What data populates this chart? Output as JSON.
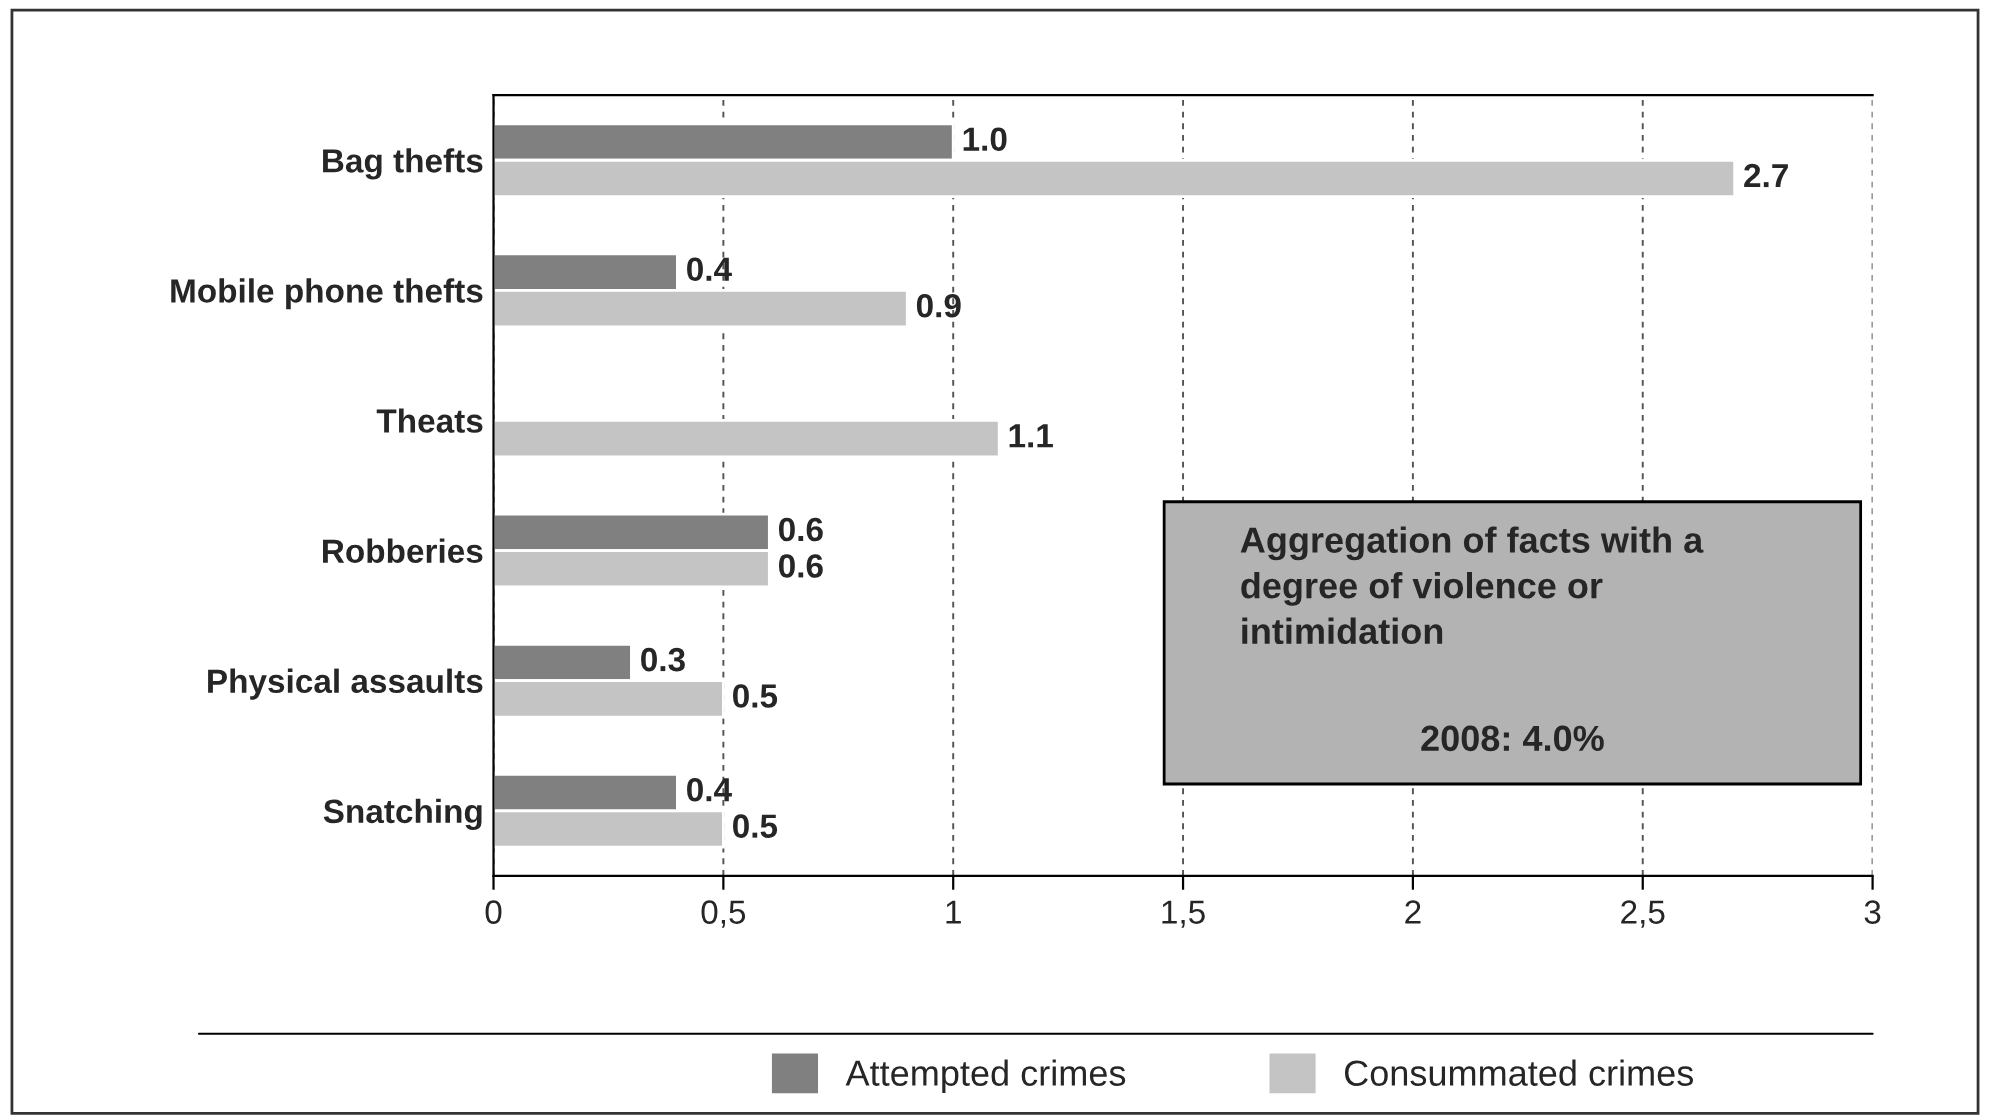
{
  "chart_data": {
    "type": "bar",
    "orientation": "horizontal",
    "categories": [
      "Bag thefts",
      "Mobile phone thefts",
      "Theats",
      "Robberies",
      "Physical assaults",
      "Snatching"
    ],
    "series": [
      {
        "name": "Attempted crimes",
        "color": "#808080",
        "values": [
          1.0,
          0.4,
          null,
          0.6,
          0.3,
          0.4
        ],
        "value_labels": [
          "1.0",
          "0.4",
          null,
          "0.6",
          "0.3",
          "0.4"
        ]
      },
      {
        "name": "Consummated crimes",
        "color": "#c4c4c4",
        "values": [
          2.7,
          0.9,
          1.1,
          0.6,
          0.5,
          0.5
        ],
        "value_labels": [
          "2.7",
          "0.9",
          "1.1",
          "0.6",
          "0.5",
          "0.5"
        ]
      }
    ],
    "xlim": [
      0,
      3
    ],
    "xticks": [
      0,
      {
        "value": 0.5,
        "label": "0,5"
      },
      1,
      {
        "value": 1.5,
        "label": "1,5"
      },
      2,
      {
        "value": 2.5,
        "label": "2,5"
      },
      3
    ],
    "grid": "x",
    "legend": "bottom",
    "annotations": [
      "Aggregation of facts with a degree of violence or intimidation",
      "2008: 4.0%"
    ]
  }
}
